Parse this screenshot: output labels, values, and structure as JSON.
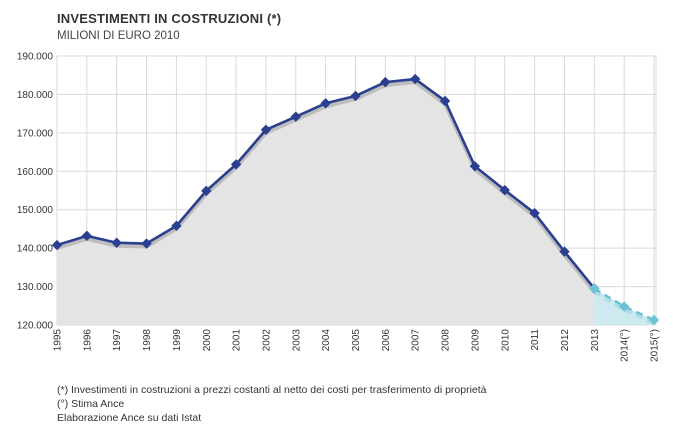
{
  "chart_data": {
    "type": "line",
    "title": "INVESTIMENTI IN COSTRUZIONI (*)",
    "subtitle": "MILIONI DI EURO 2010",
    "xlabel": "",
    "ylabel": "",
    "ylim": [
      120000,
      190000
    ],
    "yticks": [
      190000,
      180000,
      170000,
      160000,
      150000,
      140000,
      130000,
      120000
    ],
    "ytick_labels": [
      "190.000",
      "180.000",
      "170.000",
      "160.000",
      "150.000",
      "140.000",
      "130.000",
      "120.000"
    ],
    "categories": [
      "1995",
      "1996",
      "1997",
      "1998",
      "1999",
      "2000",
      "2001",
      "2002",
      "2003",
      "2004",
      "2005",
      "2006",
      "2007",
      "2008",
      "2009",
      "2010",
      "2011",
      "2012",
      "2013",
      "2014(°)",
      "2015(°)"
    ],
    "series": [
      {
        "name": "",
        "style": "solid",
        "color": "#2a3f8f",
        "values": [
          140800,
          143200,
          141400,
          141200,
          145800,
          154900,
          161800,
          170800,
          174200,
          177700,
          179600,
          183200,
          184000,
          178300,
          161300,
          155100,
          149100,
          139100,
          129500,
          null,
          null
        ]
      },
      {
        "name": "",
        "style": "dashed",
        "color": "#6cc3d3",
        "values": [
          null,
          null,
          null,
          null,
          null,
          null,
          null,
          null,
          null,
          null,
          null,
          null,
          null,
          null,
          null,
          null,
          null,
          null,
          129500,
          124800,
          121300
        ]
      }
    ],
    "grid": true,
    "legend": "none"
  },
  "notes": {
    "line1": "(*) Investimenti in costruzioni a prezzi costanti al netto dei costi per trasferimento di proprietà",
    "line2": "(°) Stima Ance",
    "line3": "Elaborazione Ance su dati Istat"
  }
}
